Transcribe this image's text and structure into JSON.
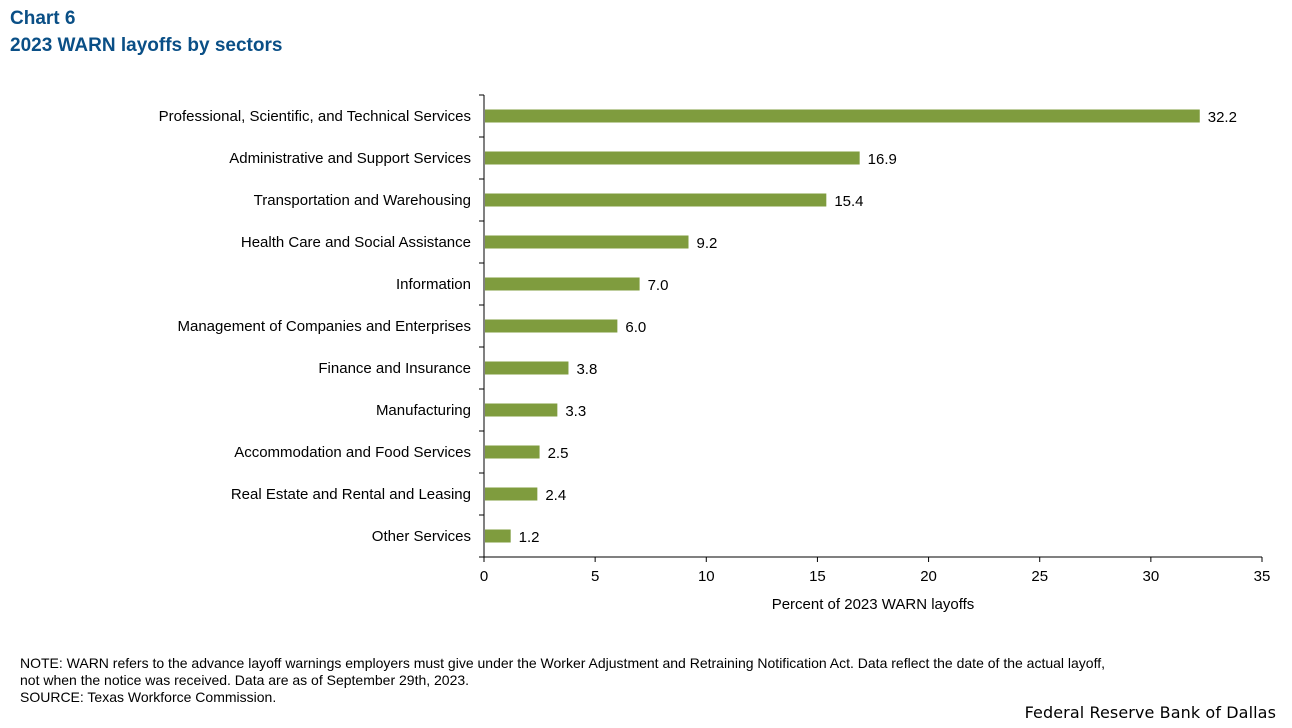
{
  "header": {
    "chart_number": "Chart 6",
    "title": "2023 WARN layoffs by sectors"
  },
  "chart_data": {
    "type": "bar",
    "orientation": "horizontal",
    "title": "2023 WARN layoffs by sectors",
    "xlabel": "Percent of 2023 WARN layoffs",
    "ylabel": "",
    "xlim": [
      0,
      35
    ],
    "xticks": [
      0,
      5,
      10,
      15,
      20,
      25,
      30,
      35
    ],
    "bar_color": "#7f9c3e",
    "categories": [
      "Professional, Scientific, and Technical Services",
      "Administrative and Support Services",
      "Transportation and Warehousing",
      "Health Care and Social Assistance",
      "Information",
      "Management of Companies and Enterprises",
      "Finance and Insurance",
      "Manufacturing",
      "Accommodation and Food Services",
      "Real Estate and Rental and Leasing",
      "Other Services"
    ],
    "values": [
      32.2,
      16.9,
      15.4,
      9.2,
      7.0,
      6.0,
      3.8,
      3.3,
      2.5,
      2.4,
      1.2
    ],
    "value_labels": [
      "32.2",
      "16.9",
      "15.4",
      "9.2",
      "7.0",
      "6.0",
      "3.8",
      "3.3",
      "2.5",
      "2.4",
      "1.2"
    ]
  },
  "notes": {
    "note_line_1": "NOTE: WARN refers to the advance layoff warnings employers must give under the Worker Adjustment and Retraining Notification Act.  Data reflect the date of the actual layoff,",
    "note_line_2": "not when the notice was received. Data are as of September 29th, 2023.",
    "source": "SOURCE: Texas Workforce Commission."
  },
  "footer": {
    "brand": "Federal Reserve Bank of Dallas"
  }
}
